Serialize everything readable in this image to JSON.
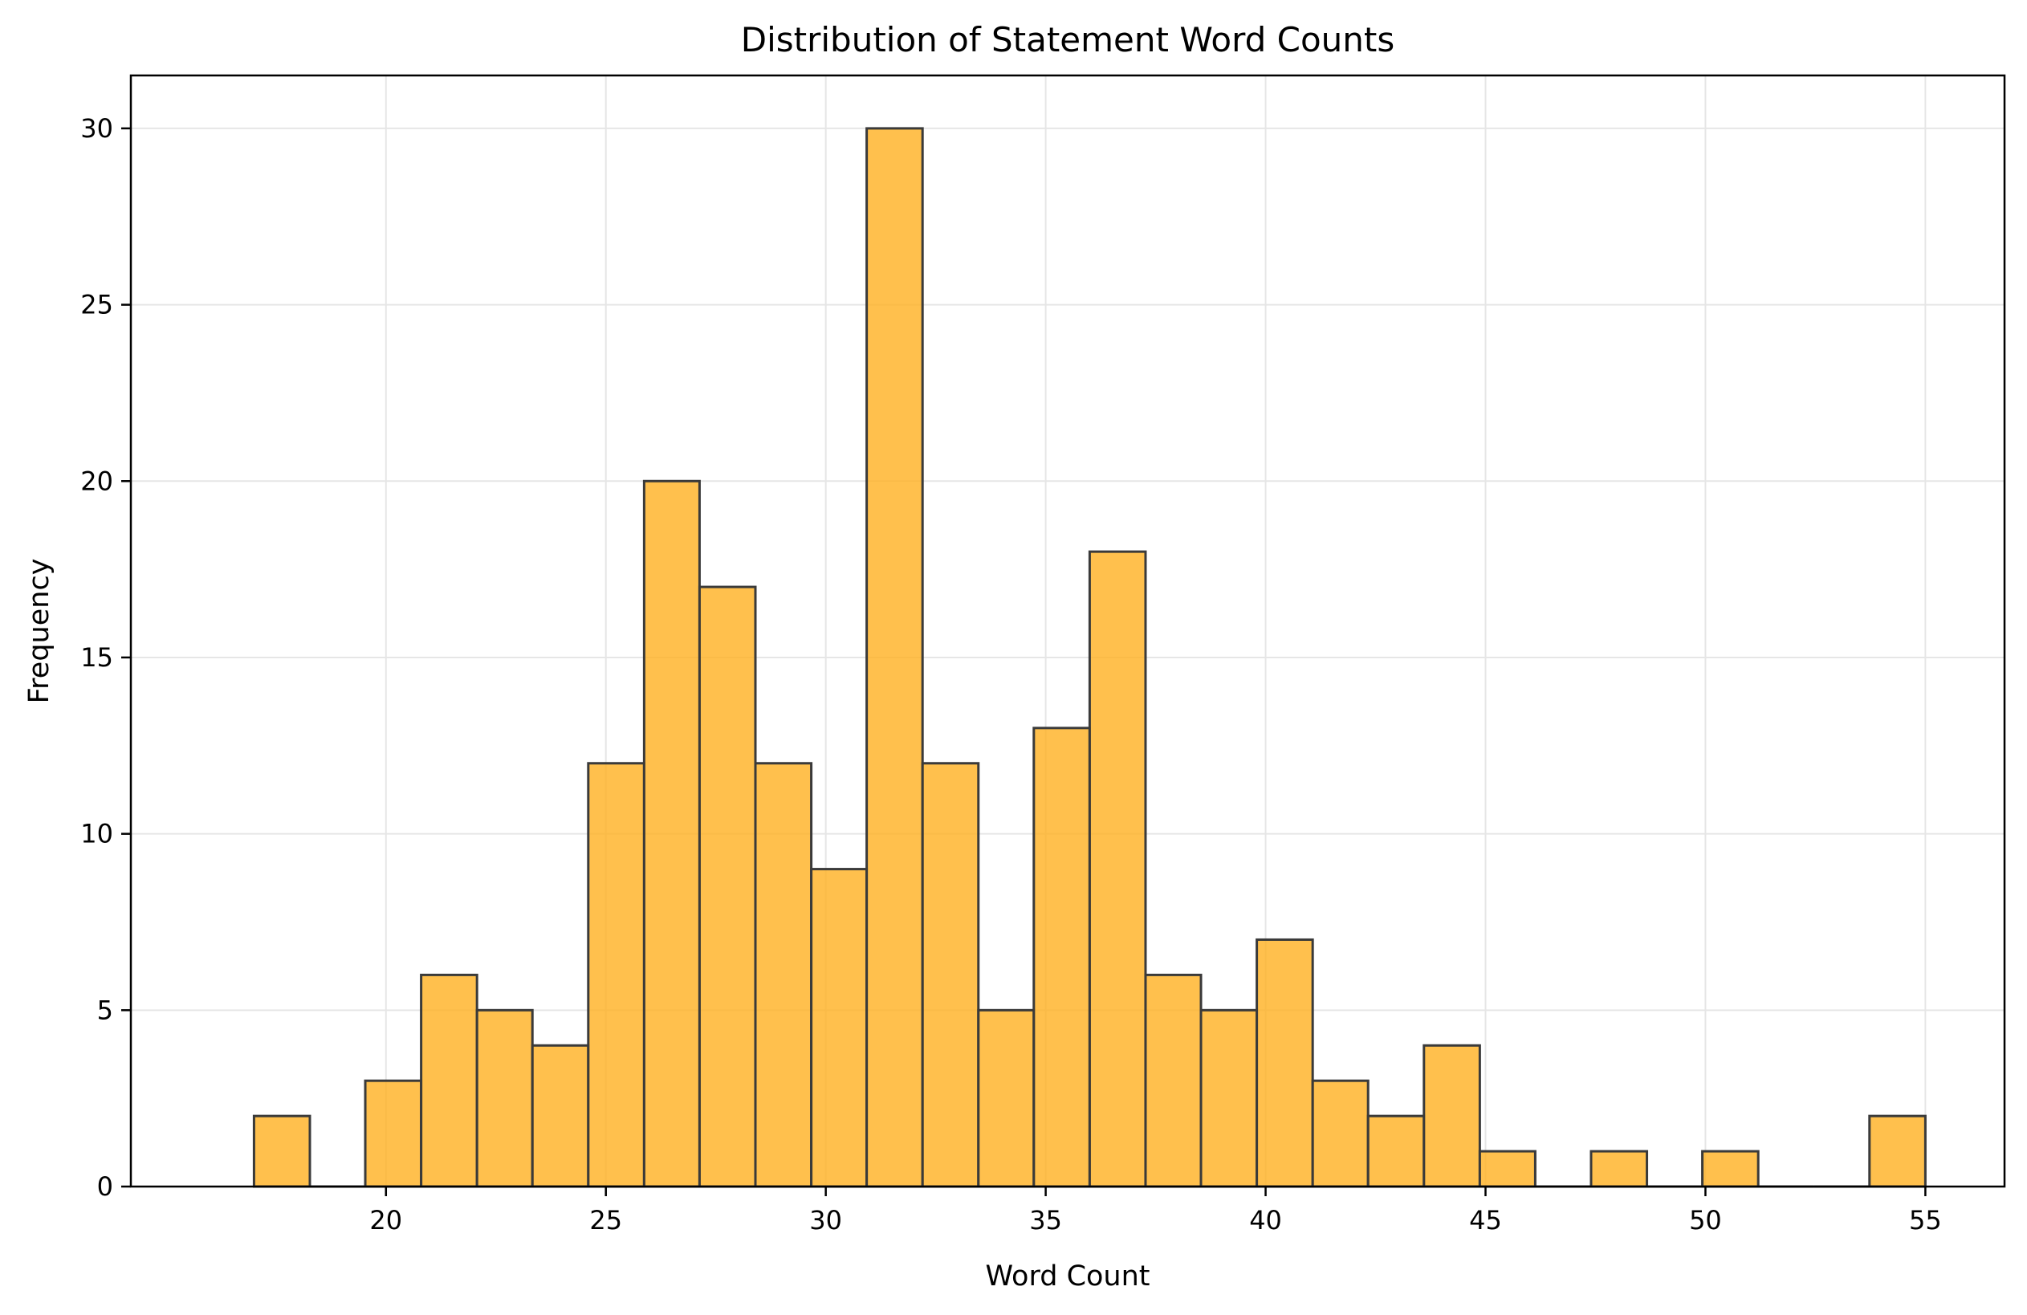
{
  "chart_data": {
    "type": "bar",
    "title": "Distribution of Statement Word Counts",
    "xlabel": "Word Count",
    "ylabel": "Frequency",
    "xlim": [
      14.2,
      56.8
    ],
    "ylim": [
      0,
      31.5
    ],
    "xticks": [
      20,
      25,
      30,
      35,
      40,
      45,
      50,
      55
    ],
    "yticks": [
      0,
      5,
      10,
      15,
      20,
      25,
      30
    ],
    "grid": true,
    "bar_color": "#FFB020",
    "bar_edge_color": "#3a3a3a",
    "grid_color": "#e6e6e6",
    "bins": [
      {
        "x0": 17.0,
        "x1": 18.27,
        "count": 2
      },
      {
        "x0": 18.27,
        "x1": 19.53,
        "count": 0
      },
      {
        "x0": 19.53,
        "x1": 20.8,
        "count": 3
      },
      {
        "x0": 20.8,
        "x1": 22.07,
        "count": 6
      },
      {
        "x0": 22.07,
        "x1": 23.33,
        "count": 5
      },
      {
        "x0": 23.33,
        "x1": 24.6,
        "count": 4
      },
      {
        "x0": 24.6,
        "x1": 25.87,
        "count": 12
      },
      {
        "x0": 25.87,
        "x1": 27.13,
        "count": 20
      },
      {
        "x0": 27.13,
        "x1": 28.4,
        "count": 17
      },
      {
        "x0": 28.4,
        "x1": 29.67,
        "count": 12
      },
      {
        "x0": 29.67,
        "x1": 30.93,
        "count": 9
      },
      {
        "x0": 30.93,
        "x1": 32.2,
        "count": 30
      },
      {
        "x0": 32.2,
        "x1": 33.47,
        "count": 12
      },
      {
        "x0": 33.47,
        "x1": 34.73,
        "count": 5
      },
      {
        "x0": 34.73,
        "x1": 36.0,
        "count": 13
      },
      {
        "x0": 36.0,
        "x1": 37.27,
        "count": 18
      },
      {
        "x0": 37.27,
        "x1": 38.53,
        "count": 6
      },
      {
        "x0": 38.53,
        "x1": 39.8,
        "count": 5
      },
      {
        "x0": 39.8,
        "x1": 41.07,
        "count": 7
      },
      {
        "x0": 41.07,
        "x1": 42.33,
        "count": 3
      },
      {
        "x0": 42.33,
        "x1": 43.6,
        "count": 2
      },
      {
        "x0": 43.6,
        "x1": 44.87,
        "count": 4
      },
      {
        "x0": 44.87,
        "x1": 46.13,
        "count": 1
      },
      {
        "x0": 46.13,
        "x1": 47.4,
        "count": 0
      },
      {
        "x0": 47.4,
        "x1": 48.67,
        "count": 1
      },
      {
        "x0": 48.67,
        "x1": 49.93,
        "count": 0
      },
      {
        "x0": 49.93,
        "x1": 51.2,
        "count": 1
      },
      {
        "x0": 51.2,
        "x1": 52.47,
        "count": 0
      },
      {
        "x0": 52.47,
        "x1": 53.73,
        "count": 0
      },
      {
        "x0": 53.73,
        "x1": 55.0,
        "count": 2
      }
    ]
  }
}
